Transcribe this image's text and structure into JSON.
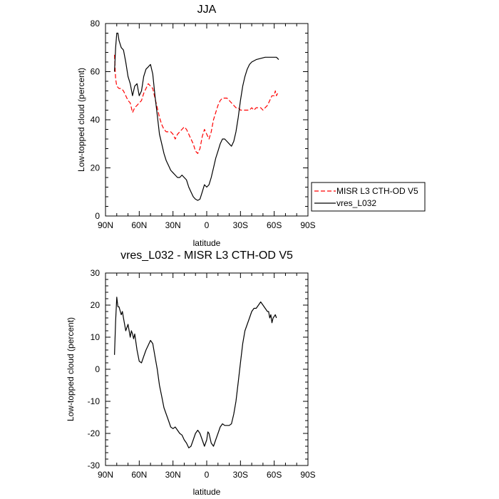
{
  "chart_data": [
    {
      "type": "line",
      "title": "JJA",
      "xlabel": "latitude",
      "ylabel": "Low-topped cloud (percent)",
      "xlim": [
        90,
        -90
      ],
      "ylim": [
        0,
        80
      ],
      "x_ticks": [
        90,
        60,
        30,
        0,
        -30,
        -60,
        -90
      ],
      "x_tick_labels": [
        "90N",
        "60N",
        "30N",
        "0",
        "30S",
        "60S",
        "90S"
      ],
      "y_ticks": [
        0,
        20,
        40,
        60,
        80
      ],
      "y_tick_labels": [
        "0",
        "20",
        "40",
        "60",
        "80"
      ],
      "legend_position": "right",
      "series": [
        {
          "name": "MISR L3 CTH-OD V5",
          "color": "#ff0000",
          "dash": "dashed",
          "points": [
            [
              82,
              67
            ],
            [
              81,
              57
            ],
            [
              80,
              54
            ],
            [
              78,
              53
            ],
            [
              76,
              53
            ],
            [
              74,
              52
            ],
            [
              72,
              50
            ],
            [
              70,
              48
            ],
            [
              68,
              47
            ],
            [
              66,
              43
            ],
            [
              64,
              45
            ],
            [
              62,
              46
            ],
            [
              60,
              47
            ],
            [
              58,
              48
            ],
            [
              56,
              51
            ],
            [
              54,
              53
            ],
            [
              52,
              55
            ],
            [
              50,
              54
            ],
            [
              48,
              53
            ],
            [
              46,
              49
            ],
            [
              44,
              45
            ],
            [
              42,
              41
            ],
            [
              40,
              38
            ],
            [
              38,
              36
            ],
            [
              36,
              35
            ],
            [
              34,
              35
            ],
            [
              32,
              35
            ],
            [
              30,
              34
            ],
            [
              28,
              32
            ],
            [
              26,
              34
            ],
            [
              24,
              35
            ],
            [
              22,
              36
            ],
            [
              20,
              37
            ],
            [
              18,
              36
            ],
            [
              16,
              34
            ],
            [
              14,
              32
            ],
            [
              12,
              30
            ],
            [
              10,
              27
            ],
            [
              8,
              26
            ],
            [
              6,
              28
            ],
            [
              4,
              33
            ],
            [
              2,
              36
            ],
            [
              0,
              34
            ],
            [
              -2,
              32
            ],
            [
              -4,
              35
            ],
            [
              -6,
              40
            ],
            [
              -8,
              43
            ],
            [
              -10,
              46
            ],
            [
              -12,
              48
            ],
            [
              -14,
              49
            ],
            [
              -16,
              49
            ],
            [
              -18,
              49
            ],
            [
              -20,
              48
            ],
            [
              -22,
              47
            ],
            [
              -24,
              46
            ],
            [
              -26,
              45
            ],
            [
              -28,
              45
            ],
            [
              -30,
              44
            ],
            [
              -32,
              44
            ],
            [
              -34,
              44
            ],
            [
              -36,
              44
            ],
            [
              -38,
              44
            ],
            [
              -40,
              45
            ],
            [
              -42,
              44
            ],
            [
              -44,
              45
            ],
            [
              -46,
              45
            ],
            [
              -48,
              45
            ],
            [
              -50,
              44
            ],
            [
              -52,
              45
            ],
            [
              -54,
              46
            ],
            [
              -56,
              48
            ],
            [
              -58,
              50
            ],
            [
              -60,
              50
            ],
            [
              -61,
              52
            ],
            [
              -62,
              50
            ],
            [
              -63,
              51
            ]
          ]
        },
        {
          "name": "vres_L032",
          "color": "#000000",
          "dash": "solid",
          "points": [
            [
              82,
              60
            ],
            [
              81,
              70
            ],
            [
              80,
              76
            ],
            [
              79,
              76
            ],
            [
              78,
              73
            ],
            [
              76,
              70
            ],
            [
              74,
              69
            ],
            [
              72,
              64
            ],
            [
              70,
              58
            ],
            [
              68,
              55
            ],
            [
              66,
              50
            ],
            [
              64,
              54
            ],
            [
              62,
              55
            ],
            [
              60,
              50
            ],
            [
              58,
              52
            ],
            [
              56,
              58
            ],
            [
              54,
              61
            ],
            [
              52,
              62
            ],
            [
              50,
              63
            ],
            [
              48,
              59
            ],
            [
              46,
              50
            ],
            [
              44,
              42
            ],
            [
              42,
              34
            ],
            [
              40,
              30
            ],
            [
              38,
              26
            ],
            [
              36,
              23
            ],
            [
              34,
              21
            ],
            [
              32,
              19
            ],
            [
              30,
              18
            ],
            [
              28,
              17
            ],
            [
              26,
              16
            ],
            [
              24,
              16
            ],
            [
              22,
              17
            ],
            [
              20,
              16
            ],
            [
              18,
              15
            ],
            [
              16,
              12
            ],
            [
              14,
              10
            ],
            [
              12,
              8
            ],
            [
              10,
              7
            ],
            [
              8,
              6.5
            ],
            [
              6,
              7
            ],
            [
              4,
              10
            ],
            [
              2,
              13
            ],
            [
              0,
              12
            ],
            [
              -2,
              13
            ],
            [
              -4,
              16
            ],
            [
              -6,
              20
            ],
            [
              -8,
              24
            ],
            [
              -10,
              27
            ],
            [
              -12,
              30
            ],
            [
              -14,
              32
            ],
            [
              -16,
              32
            ],
            [
              -18,
              31
            ],
            [
              -20,
              30
            ],
            [
              -22,
              29
            ],
            [
              -24,
              31
            ],
            [
              -26,
              35
            ],
            [
              -28,
              41
            ],
            [
              -30,
              48
            ],
            [
              -32,
              54
            ],
            [
              -34,
              58
            ],
            [
              -36,
              61
            ],
            [
              -38,
              63
            ],
            [
              -40,
              64
            ],
            [
              -44,
              65
            ],
            [
              -48,
              65.5
            ],
            [
              -52,
              66
            ],
            [
              -56,
              66
            ],
            [
              -60,
              66
            ],
            [
              -62,
              66
            ],
            [
              -64,
              65
            ]
          ]
        }
      ]
    },
    {
      "type": "line",
      "title": "vres_L032 - MISR L3 CTH-OD V5",
      "xlabel": "latitude",
      "ylabel": "Low-topped cloud (percent)",
      "xlim": [
        90,
        -90
      ],
      "ylim": [
        -30,
        30
      ],
      "x_ticks": [
        90,
        60,
        30,
        0,
        -30,
        -60,
        -90
      ],
      "x_tick_labels": [
        "90N",
        "60N",
        "30N",
        "0",
        "30S",
        "60S",
        "90S"
      ],
      "y_ticks": [
        -30,
        -20,
        -10,
        0,
        10,
        20,
        30
      ],
      "y_tick_labels": [
        "-30",
        "-20",
        "-10",
        "0",
        "10",
        "20",
        "30"
      ],
      "series": [
        {
          "color": "#000000",
          "dash": "solid",
          "points": [
            [
              82,
              4.5
            ],
            [
              81,
              15
            ],
            [
              80,
              22.5
            ],
            [
              79,
              19.5
            ],
            [
              78,
              19.5
            ],
            [
              76,
              17
            ],
            [
              75,
              18
            ],
            [
              74,
              16
            ],
            [
              72,
              12
            ],
            [
              70,
              14
            ],
            [
              68,
              10
            ],
            [
              67,
              12
            ],
            [
              66,
              11
            ],
            [
              65,
              9.5
            ],
            [
              64,
              11
            ],
            [
              62,
              6
            ],
            [
              60,
              2.5
            ],
            [
              58,
              2
            ],
            [
              56,
              4
            ],
            [
              54,
              6
            ],
            [
              52,
              7.5
            ],
            [
              50,
              9
            ],
            [
              48,
              8
            ],
            [
              46,
              4
            ],
            [
              44,
              0
            ],
            [
              42,
              -5
            ],
            [
              40,
              -8.5
            ],
            [
              38,
              -12
            ],
            [
              36,
              -14
            ],
            [
              34,
              -16
            ],
            [
              32,
              -18
            ],
            [
              30,
              -18.5
            ],
            [
              28,
              -18
            ],
            [
              26,
              -19
            ],
            [
              24,
              -20
            ],
            [
              22,
              -20.5
            ],
            [
              20,
              -22
            ],
            [
              18,
              -23
            ],
            [
              16,
              -24.5
            ],
            [
              14,
              -24
            ],
            [
              12,
              -22
            ],
            [
              10,
              -20
            ],
            [
              8,
              -19
            ],
            [
              6,
              -20
            ],
            [
              4,
              -22
            ],
            [
              2,
              -24
            ],
            [
              0,
              -22
            ],
            [
              -1,
              -19.5
            ],
            [
              -2,
              -20
            ],
            [
              -4,
              -23
            ],
            [
              -6,
              -24
            ],
            [
              -8,
              -22
            ],
            [
              -10,
              -20
            ],
            [
              -12,
              -18
            ],
            [
              -14,
              -17
            ],
            [
              -16,
              -17.5
            ],
            [
              -18,
              -17.5
            ],
            [
              -20,
              -17.5
            ],
            [
              -22,
              -17
            ],
            [
              -24,
              -14
            ],
            [
              -26,
              -10
            ],
            [
              -28,
              -4
            ],
            [
              -30,
              2
            ],
            [
              -32,
              8
            ],
            [
              -34,
              12
            ],
            [
              -36,
              14
            ],
            [
              -38,
              16
            ],
            [
              -40,
              18
            ],
            [
              -42,
              19
            ],
            [
              -44,
              19
            ],
            [
              -46,
              20
            ],
            [
              -48,
              21
            ],
            [
              -50,
              20
            ],
            [
              -52,
              19
            ],
            [
              -54,
              18
            ],
            [
              -55,
              18
            ],
            [
              -56,
              16
            ],
            [
              -57,
              17
            ],
            [
              -58,
              14.5
            ],
            [
              -59,
              16
            ],
            [
              -60,
              16.5
            ],
            [
              -61,
              17
            ],
            [
              -62,
              16
            ]
          ]
        }
      ]
    }
  ]
}
